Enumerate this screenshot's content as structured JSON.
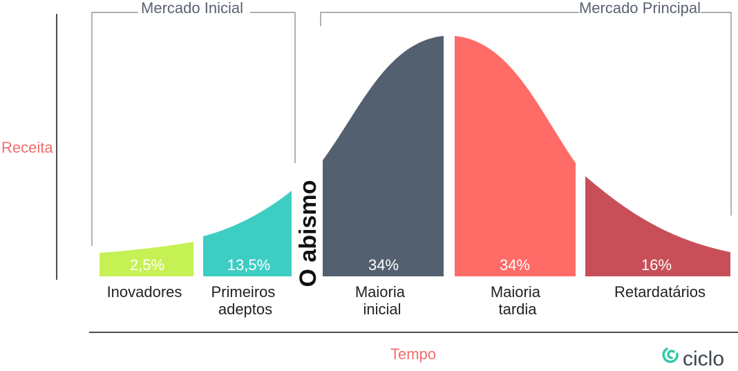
{
  "chart_data": {
    "type": "area",
    "xlabel": "Tempo",
    "ylabel": "Receita",
    "categories": [
      "Inovadores",
      "Primeiros adeptos",
      "Maioria inicial",
      "Maioria tardia",
      "Retardatários"
    ],
    "category_lines": [
      [
        "Inovadores"
      ],
      [
        "Primeiros",
        "adeptos"
      ],
      [
        "Maioria",
        "inicial"
      ],
      [
        "Maioria",
        "tardia"
      ],
      [
        "Retardatários"
      ]
    ],
    "values": [
      2.5,
      13.5,
      34,
      34,
      16
    ],
    "value_labels": [
      "2,5%",
      "13,5%",
      "34%",
      "34%",
      "16%"
    ],
    "colors": [
      "#c6f154",
      "#3ecdc3",
      "#536070",
      "#ff6b67",
      "#c84f58"
    ],
    "annotations": {
      "chasm": "O abismo",
      "early_market": "Mercado Inicial",
      "mainstream_market": "Mercado Principal"
    },
    "grid": false,
    "legend": "none"
  },
  "brand": {
    "name": "ciclo",
    "accent": "#2fc9a6"
  }
}
